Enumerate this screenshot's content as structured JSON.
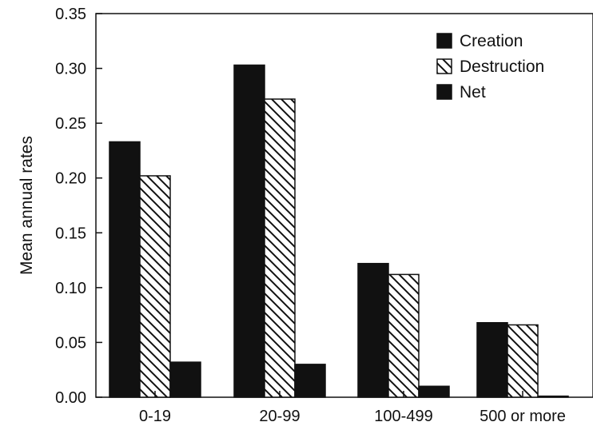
{
  "chart_data": {
    "type": "bar",
    "title": "",
    "xlabel": "",
    "ylabel": "Mean annual rates",
    "categories": [
      "0-19",
      "20-99",
      "100-499",
      "500 or more"
    ],
    "series": [
      {
        "name": "Creation",
        "fill": "solid",
        "color": "#111111",
        "values": [
          0.233,
          0.303,
          0.122,
          0.068
        ]
      },
      {
        "name": "Destruction",
        "fill": "hatched",
        "color": "#111111",
        "values": [
          0.202,
          0.272,
          0.112,
          0.066
        ]
      },
      {
        "name": "Net",
        "fill": "solid",
        "color": "#111111",
        "values": [
          0.032,
          0.03,
          0.01,
          0.001
        ]
      }
    ],
    "ylim": [
      0,
      0.35
    ],
    "yticks": [
      "0.00",
      "0.05",
      "0.10",
      "0.15",
      "0.20",
      "0.25",
      "0.30",
      "0.35"
    ],
    "grid": false,
    "legend": "top-right"
  }
}
